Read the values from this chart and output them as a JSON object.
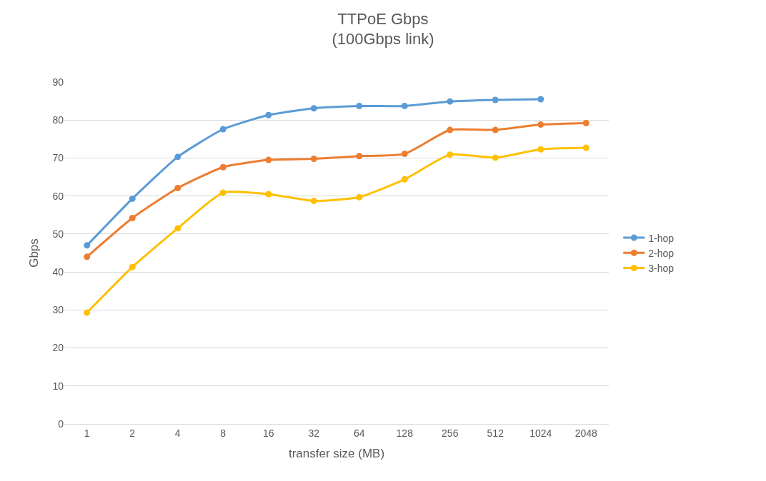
{
  "chart_data": {
    "type": "line",
    "title": "TTPoE Gbps\n(100Gbps link)",
    "xlabel": "transfer size (MB)",
    "ylabel": "Gbps",
    "categories": [
      "1",
      "2",
      "4",
      "8",
      "16",
      "32",
      "64",
      "128",
      "256",
      "512",
      "1024",
      "2048"
    ],
    "series": [
      {
        "name": "1-hop",
        "color": "#5b9bd5",
        "values": [
          47.0,
          59.3,
          70.3,
          77.6,
          81.3,
          83.1,
          83.7,
          83.7,
          84.9,
          85.3,
          85.5,
          null
        ]
      },
      {
        "name": "2-hop",
        "color": "#ed7d31",
        "values": [
          44.0,
          54.2,
          62.1,
          67.6,
          69.5,
          69.8,
          70.5,
          71.1,
          77.4,
          77.4,
          78.8,
          79.2
        ]
      },
      {
        "name": "3-hop",
        "color": "#ffc000",
        "values": [
          29.3,
          41.3,
          51.5,
          60.9,
          60.5,
          58.7,
          59.7,
          64.4,
          70.9,
          70.1,
          72.3,
          72.7
        ]
      }
    ],
    "ylim": [
      0,
      90
    ],
    "yticks": [
      0,
      10,
      20,
      30,
      40,
      50,
      60,
      70,
      80,
      90
    ],
    "grid": "y",
    "legend": "right",
    "marker": "circle",
    "line_style": "solid"
  }
}
